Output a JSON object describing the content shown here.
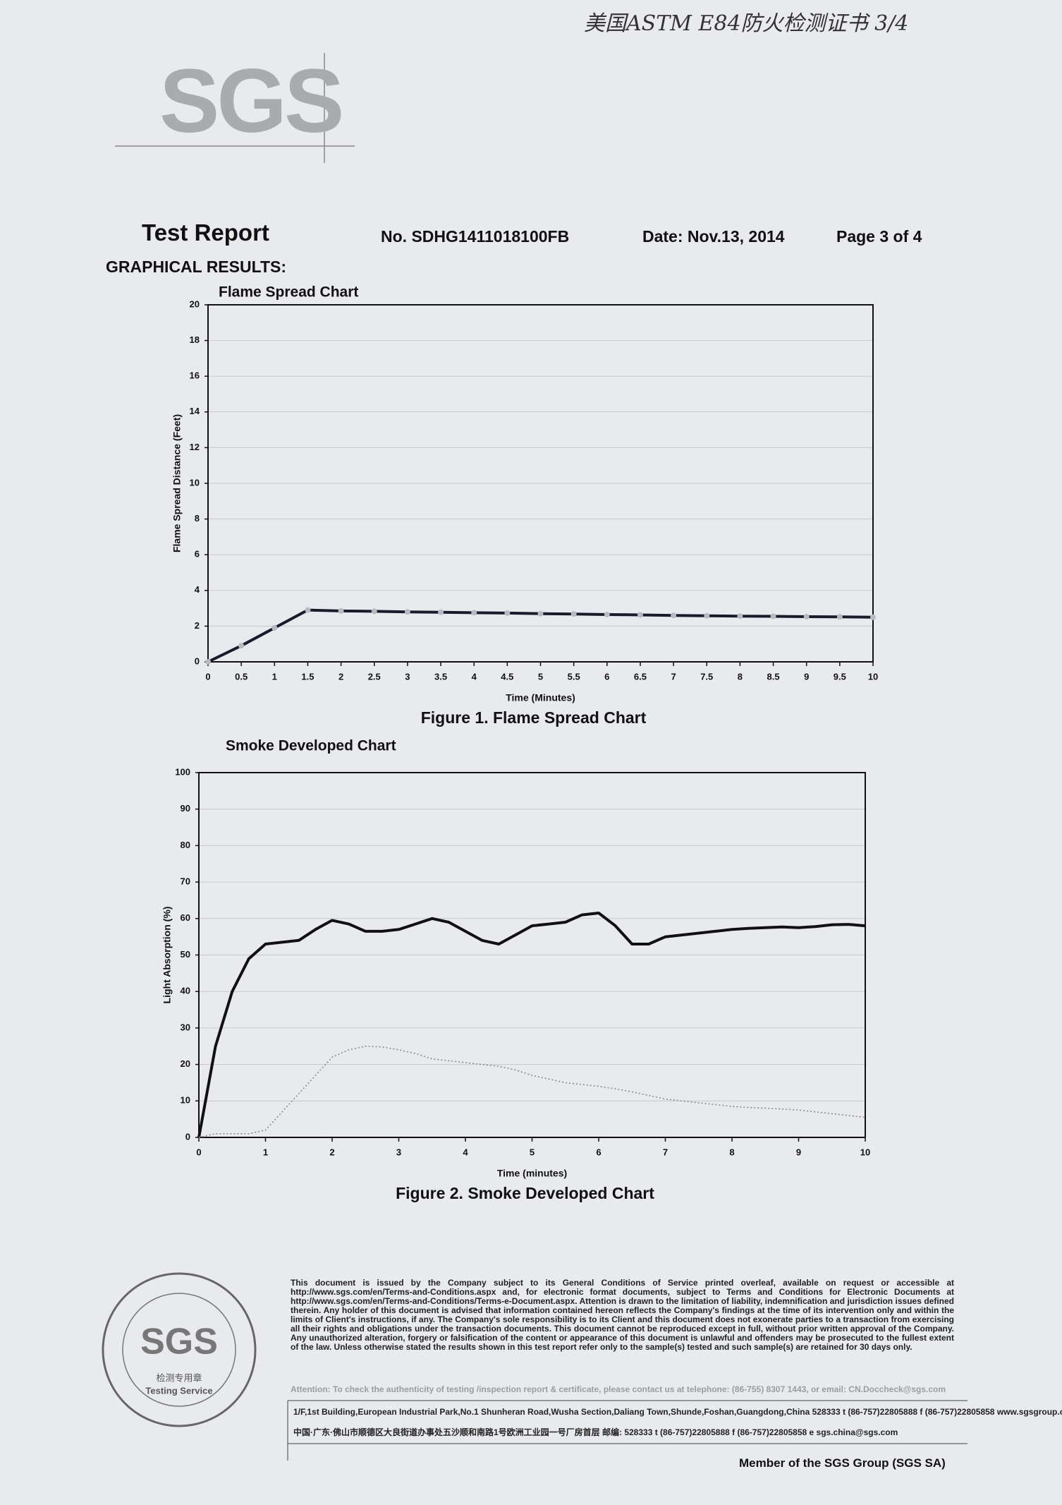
{
  "handwritten_note": "美国ASTM E84防火检测证书 3/4",
  "logo": "SGS",
  "header": {
    "title": "Test Report",
    "report_no": "No. SDHG1411018100FB",
    "date": "Date: Nov.13, 2014",
    "page": "Page 3 of 4"
  },
  "section_title": "GRAPHICAL RESULTS:",
  "chart_data": [
    {
      "type": "line",
      "title": "Flame Spread Chart",
      "caption": "Figure 1.  Flame Spread Chart",
      "x_label": "Time (Minutes)",
      "y_label": "Flame Spread Distance (Feet)",
      "x": [
        0,
        0.5,
        1,
        1.5,
        2,
        2.5,
        3,
        3.5,
        4,
        4.5,
        5,
        5.5,
        6,
        6.5,
        7,
        7.5,
        8,
        8.5,
        9,
        9.5,
        10
      ],
      "series": [
        {
          "color": "#1a1a2a",
          "line_style": "solid",
          "markers": true,
          "values": [
            0,
            0.9,
            1.9,
            2.9,
            2.85,
            2.83,
            2.8,
            2.78,
            2.75,
            2.73,
            2.7,
            2.68,
            2.65,
            2.63,
            2.6,
            2.58,
            2.56,
            2.55,
            2.53,
            2.52,
            2.5
          ]
        }
      ],
      "xlim": [
        0,
        10
      ],
      "ylim": [
        0,
        20
      ],
      "xticks": [
        0,
        0.5,
        1,
        1.5,
        2,
        2.5,
        3,
        3.5,
        4,
        4.5,
        5,
        5.5,
        6,
        6.5,
        7,
        7.5,
        8,
        8.5,
        9,
        9.5,
        10
      ],
      "yticks": [
        0,
        2,
        4,
        6,
        8,
        10,
        12,
        14,
        16,
        18,
        20
      ],
      "grid": true
    },
    {
      "type": "line",
      "title": "Smoke Developed Chart",
      "caption": "Figure 2.  Smoke Developed Chart",
      "x_label": "Time (minutes)",
      "y_label": "Light Absorption (%)",
      "x": [
        0,
        0.25,
        0.5,
        0.75,
        1,
        1.25,
        1.5,
        1.75,
        2,
        2.25,
        2.5,
        2.75,
        3,
        3.25,
        3.5,
        3.75,
        4,
        4.25,
        4.5,
        4.75,
        5,
        5.25,
        5.5,
        5.75,
        6,
        6.25,
        6.5,
        6.75,
        7,
        7.25,
        7.5,
        7.75,
        8,
        8.25,
        8.5,
        8.75,
        9,
        9.25,
        9.5,
        9.75,
        10
      ],
      "series": [
        {
          "color": "#111111",
          "line_style": "solid",
          "markers": false,
          "values": [
            0,
            25,
            40,
            49,
            53,
            53.5,
            54,
            57,
            59.5,
            58.5,
            56.5,
            56.5,
            57,
            58.5,
            60,
            59,
            56.5,
            54,
            53,
            55.5,
            58,
            58.5,
            59,
            61,
            61.5,
            58,
            53,
            53,
            55,
            55.5,
            56,
            56.5,
            57,
            57.3,
            57.5,
            57.7,
            57.5,
            57.8,
            58.3,
            58.4,
            58
          ]
        },
        {
          "color": "#8a8a8a",
          "line_style": "dotted",
          "markers": false,
          "values": [
            0,
            1,
            1,
            1,
            2,
            7,
            12,
            17,
            22,
            24,
            25,
            24.8,
            24,
            23,
            21.5,
            21,
            20.5,
            20,
            19.5,
            18.5,
            17,
            16,
            15,
            14.5,
            14,
            13.3,
            12.5,
            11.5,
            10.5,
            10,
            9.5,
            9,
            8.5,
            8.2,
            8,
            7.8,
            7.5,
            7,
            6.5,
            6,
            5.5
          ]
        }
      ],
      "xlim": [
        0,
        10
      ],
      "ylim": [
        0,
        100
      ],
      "xticks": [
        0,
        1,
        2,
        3,
        4,
        5,
        6,
        7,
        8,
        9,
        10
      ],
      "yticks": [
        0,
        10,
        20,
        30,
        40,
        50,
        60,
        70,
        80,
        90,
        100
      ],
      "grid": true
    }
  ],
  "footer": {
    "disclaimer": "This document is issued by the Company subject to its General Conditions of Service printed overleaf, available on request or accessible at http://www.sgs.com/en/Terms-and-Conditions.aspx and, for electronic format documents, subject to Terms and Conditions for Electronic Documents at http://www.sgs.com/en/Terms-and-Conditions/Terms-e-Document.aspx. Attention is drawn to the limitation of liability, indemnification and jurisdiction issues defined therein. Any holder of this document is advised that information contained hereon reflects the Company's findings at the time of its intervention only and within the limits of Client's instructions, if any. The Company's sole responsibility is to its Client and this document does not exonerate parties to a transaction from exercising all their rights and obligations under the transaction documents. This document cannot be reproduced except in full, without prior written approval of the Company. Any unauthorized alteration, forgery or falsification of the content or appearance of this document is unlawful and offenders may be prosecuted to the fullest extent of the law. Unless otherwise stated the results shown in this test report refer only to the sample(s) tested and such sample(s) are retained for 30 days only.",
    "attention": "Attention: To check the authenticity of testing /inspection report & certificate, please contact us at telephone: (86-755) 8307 1443, or email: CN.Doccheck@sgs.com",
    "address_en": "1/F,1st Building,European Industrial Park,No.1 Shunheran Road,Wusha Section,Daliang Town,Shunde,Foshan,Guangdong,China 528333   t (86-757)22805888   f (86-757)22805858   www.sgsgroup.com.cn",
    "address_cn": "中国·广东·佛山市顺德区大良街道办事处五沙顺和南路1号欧洲工业园一号厂房首层 邮编: 528333   t (86-757)22805888   f (86-757)22805858   e sgs.china@sgs.com",
    "member": "Member of the SGS Group (SGS SA)"
  },
  "stamp": {
    "logo": "SGS",
    "chinese": "检测专用章",
    "english": "Testing Service"
  }
}
